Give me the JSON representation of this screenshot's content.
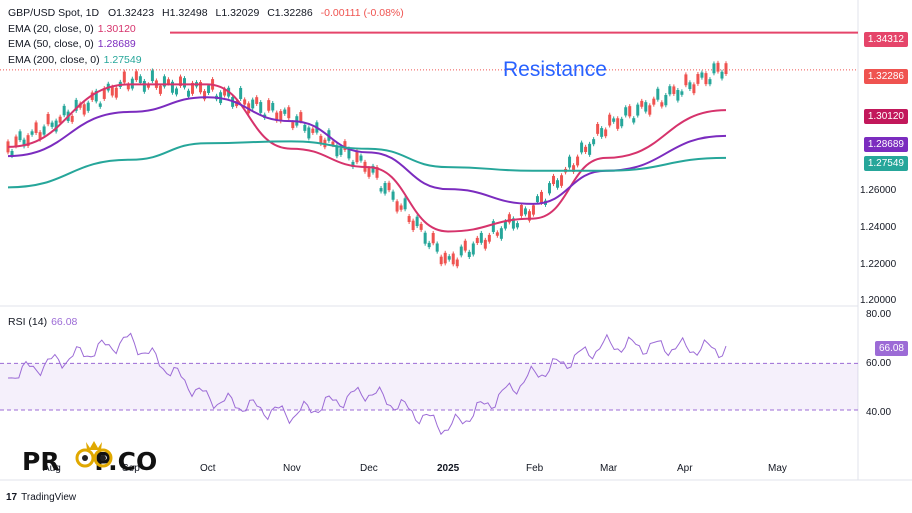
{
  "header": {
    "symbol": "GBP/USD Spot, 1D",
    "ohlc_open": "O1.32423",
    "ohlc_high": "H1.32498",
    "ohlc_low": "L1.32029",
    "ohlc_close": "C1.32286",
    "change": "-0.00111 (-0.08%)"
  },
  "indicators": [
    {
      "label": "EMA (20, close, 0)",
      "value": "1.30120",
      "color": "#d6336c"
    },
    {
      "label": "EMA (50, close, 0)",
      "value": "1.28689",
      "color": "#7b2cbf"
    },
    {
      "label": "EMA (200, close, 0)",
      "value": "1.27549",
      "color": "#26a69a"
    }
  ],
  "annotation": "Resistance",
  "price_tags": [
    {
      "text": "1.34312",
      "color": "#e5456a"
    },
    {
      "text": "1.32286",
      "color": "#ef5350"
    },
    {
      "text": "1.30120",
      "color": "#c2185b"
    },
    {
      "text": "1.28689",
      "color": "#7b2cbf"
    },
    {
      "text": "1.27549",
      "color": "#26a69a"
    }
  ],
  "rsi": {
    "label": "RSI (14)",
    "value": "66.08",
    "color": "#9c6bd6"
  },
  "logo_text": "PR    P.CO",
  "footer": "TradingView",
  "chart_data": {
    "type": "line",
    "title": "GBP/USD Spot, 1D",
    "y_ticks": [
      "1.20000",
      "1.22000",
      "1.24000",
      "1.26000"
    ],
    "ylim": [
      1.195,
      1.35
    ],
    "x_ticks": [
      "Aug",
      "Sep",
      "Oct",
      "Nov",
      "Dec",
      "2025",
      "Feb",
      "Mar",
      "Apr",
      "May"
    ],
    "resistance_level": 1.34312,
    "series": [
      {
        "name": "GBP/USD Spot, 1D",
        "color": "#26a69a",
        "x": [
          "Aug",
          "Sep",
          "Oct",
          "Nov",
          "Dec",
          "2025",
          "Feb",
          "Mar",
          "Apr"
        ],
        "values": [
          1.278,
          1.315,
          1.31,
          1.295,
          1.268,
          1.216,
          1.245,
          1.29,
          1.322
        ]
      },
      {
        "name": "EMA (20, close, 0)",
        "color": "#d6336c",
        "x": [
          "Aug",
          "Sep",
          "Oct",
          "Nov",
          "Dec",
          "2025",
          "Feb",
          "Mar",
          "Apr"
        ],
        "values": [
          1.281,
          1.315,
          1.315,
          1.28,
          1.27,
          1.235,
          1.242,
          1.275,
          1.301
        ]
      },
      {
        "name": "EMA (50, close, 0)",
        "color": "#7b2cbf",
        "x": [
          "Aug",
          "Sep",
          "Oct",
          "Nov",
          "Dec",
          "2025",
          "Feb",
          "Mar",
          "Apr"
        ],
        "values": [
          1.276,
          1.3,
          1.308,
          1.295,
          1.278,
          1.258,
          1.25,
          1.268,
          1.287
        ]
      },
      {
        "name": "EMA (200, close, 0)",
        "color": "#26a69a",
        "x": [
          "Aug",
          "Sep",
          "Oct",
          "Nov",
          "Dec",
          "2025",
          "Feb",
          "Mar",
          "Apr"
        ],
        "values": [
          1.259,
          1.274,
          1.283,
          1.284,
          1.28,
          1.27,
          1.268,
          1.268,
          1.275
        ]
      }
    ],
    "rsi_panel": {
      "name": "RSI (14)",
      "y_ticks": [
        "80.00",
        "60.00",
        "40.00"
      ],
      "ylim": [
        25,
        82
      ],
      "band": [
        40,
        60
      ],
      "x": [
        "Aug",
        "Sep",
        "Oct",
        "Nov",
        "Dec",
        "2025",
        "Feb",
        "Mar",
        "Apr"
      ],
      "values": [
        55,
        70,
        45,
        38,
        48,
        32,
        55,
        68,
        66
      ]
    }
  }
}
